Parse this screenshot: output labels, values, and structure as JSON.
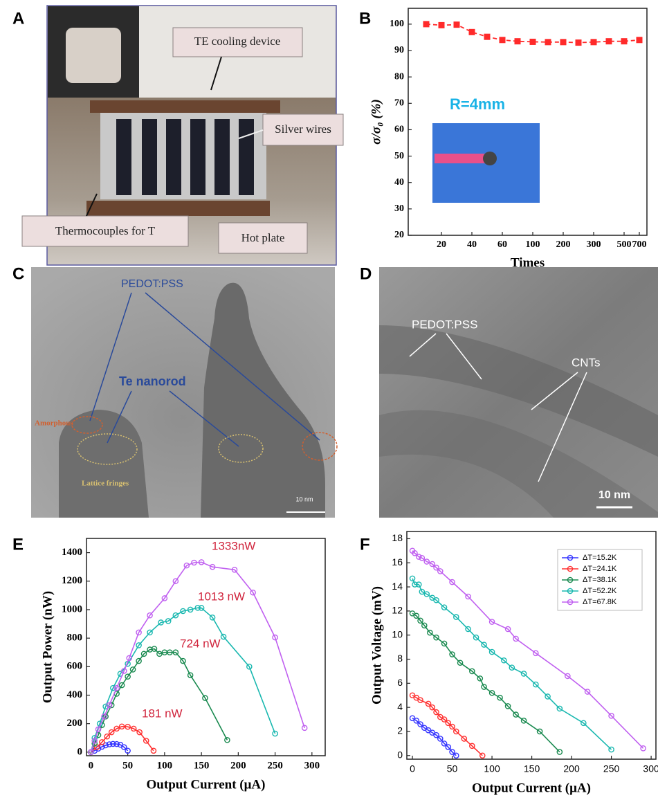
{
  "photo_panels": [
    {
      "label": "A",
      "annotations": [
        "TE cooling device",
        "Silver wires",
        "Thermocouples for T",
        "Hot plate"
      ]
    },
    {
      "label": "C",
      "annotations": [
        "PEDOT:PSS",
        "Te nanorod",
        "Amorphous",
        "Lattice fringes",
        "10 nm"
      ]
    },
    {
      "label": "D",
      "annotations": [
        "PEDOT:PSS",
        "CNTs",
        "10 nm"
      ]
    }
  ],
  "chart_data": [
    {
      "type": "line",
      "panel_label": "B",
      "y_label": "σ/σ₀ (%)",
      "x_label": "Times",
      "annotations": [
        "R=4mm"
      ],
      "categories": [
        null,
        "20",
        null,
        "40",
        null,
        "60",
        null,
        "100",
        null,
        "200",
        null,
        "300",
        null,
        "500",
        "700"
      ],
      "values": [
        100,
        99.6,
        99.8,
        97,
        95.2,
        94,
        93.5,
        93.3,
        93.2,
        93.2,
        93,
        93.2,
        93.5,
        93.5,
        94
      ],
      "color": "#ff2a2a",
      "marker": "square",
      "dashed": true,
      "ylim": [
        20,
        106
      ],
      "yticks": [
        20,
        30,
        40,
        50,
        60,
        70,
        80,
        90,
        100
      ]
    },
    {
      "type": "line",
      "panel_label": "E",
      "y_label": "Output Power (nW)",
      "x_label": "Output Current (μA)",
      "annotations": [
        "1333nW",
        "1013 nW",
        "724 nW",
        "181 nW"
      ],
      "marker": "circle",
      "series": [
        {
          "color": "#3535ff",
          "x": [
            0,
            5,
            10,
            15,
            20,
            25,
            30,
            35,
            40,
            45,
            50
          ],
          "values": [
            0,
            10,
            25,
            38,
            48,
            55,
            58,
            57,
            52,
            35,
            10
          ]
        },
        {
          "color": "#ff3030",
          "x": [
            0,
            8,
            15,
            22,
            28,
            35,
            42,
            50,
            58,
            66,
            75,
            85
          ],
          "values": [
            0,
            35,
            70,
            110,
            140,
            165,
            180,
            178,
            165,
            140,
            80,
            10
          ]
        },
        {
          "color": "#1a8a50",
          "x": [
            0,
            5,
            10,
            15,
            20,
            28,
            35,
            42,
            50,
            57,
            65,
            72,
            80,
            86,
            93,
            100,
            107,
            115,
            125,
            135,
            155,
            185
          ],
          "values": [
            0,
            60,
            120,
            190,
            250,
            330,
            410,
            470,
            530,
            580,
            640,
            690,
            720,
            725,
            690,
            700,
            700,
            700,
            640,
            540,
            380,
            85
          ]
        },
        {
          "color": "#1ab8b0",
          "x": [
            0,
            5,
            12,
            20,
            30,
            40,
            50,
            65,
            80,
            95,
            105,
            115,
            125,
            135,
            145,
            150,
            165,
            180,
            215,
            250
          ],
          "values": [
            0,
            100,
            200,
            320,
            450,
            550,
            620,
            750,
            840,
            910,
            920,
            960,
            990,
            1000,
            1013,
            1012,
            945,
            810,
            600,
            130
          ]
        },
        {
          "color": "#c060f0",
          "x": [
            0,
            5,
            10,
            18,
            25,
            35,
            45,
            52,
            65,
            80,
            100,
            115,
            130,
            140,
            150,
            165,
            195,
            220,
            250,
            290
          ],
          "values": [
            0,
            80,
            160,
            250,
            330,
            450,
            570,
            660,
            840,
            960,
            1080,
            1200,
            1310,
            1330,
            1333,
            1300,
            1280,
            1120,
            805,
            170
          ]
        }
      ],
      "xlim": [
        -6,
        318
      ],
      "xticks": [
        0,
        50,
        100,
        150,
        200,
        250,
        300
      ],
      "ylim": [
        -25,
        1500
      ],
      "yticks": [
        0,
        200,
        400,
        600,
        800,
        1000,
        1200,
        1400
      ]
    },
    {
      "type": "line",
      "panel_label": "F",
      "y_label": "Output Voltage (mV)",
      "x_label": "Output Current (μA)",
      "marker": "circle",
      "legend": "upper right",
      "series": [
        {
          "name": "ΔT=15.2K",
          "color": "#3535ff",
          "x": [
            0,
            5,
            10,
            15,
            20,
            25,
            30,
            35,
            40,
            45,
            50,
            55
          ],
          "values": [
            3.1,
            2.9,
            2.6,
            2.3,
            2.1,
            1.9,
            1.7,
            1.4,
            1.0,
            0.7,
            0.3,
            0
          ]
        },
        {
          "name": "ΔT=24.1K",
          "color": "#ff3030",
          "x": [
            0,
            5,
            10,
            20,
            25,
            30,
            35,
            40,
            45,
            50,
            55,
            65,
            75,
            88
          ],
          "values": [
            5,
            4.8,
            4.6,
            4.3,
            4.0,
            3.6,
            3.2,
            3.0,
            2.7,
            2.4,
            2.0,
            1.4,
            0.8,
            0
          ]
        },
        {
          "name": "ΔT=38.1K",
          "color": "#1a8a50",
          "x": [
            0,
            5,
            10,
            15,
            22,
            30,
            40,
            50,
            60,
            75,
            85,
            90,
            100,
            110,
            120,
            130,
            140,
            160,
            185
          ],
          "values": [
            11.8,
            11.6,
            11.2,
            10.8,
            10.2,
            9.8,
            9.3,
            8.4,
            7.7,
            7.0,
            6.4,
            5.7,
            5.2,
            4.8,
            4.1,
            3.4,
            2.9,
            2.0,
            0.3
          ]
        },
        {
          "name": "ΔT=52.2K",
          "color": "#1ab8b0",
          "x": [
            0,
            3,
            8,
            12,
            18,
            25,
            30,
            40,
            55,
            70,
            80,
            90,
            100,
            115,
            125,
            140,
            155,
            170,
            185,
            215,
            250
          ],
          "values": [
            14.7,
            14.2,
            14.2,
            13.6,
            13.4,
            13.1,
            12.9,
            12.3,
            11.5,
            10.5,
            9.8,
            9.2,
            8.6,
            7.9,
            7.3,
            6.8,
            5.9,
            4.9,
            3.9,
            2.7,
            0.5
          ]
        },
        {
          "name": "ΔT=67.8K",
          "color": "#c060f0",
          "x": [
            0,
            3,
            8,
            12,
            18,
            25,
            30,
            35,
            50,
            70,
            100,
            120,
            130,
            155,
            195,
            220,
            250,
            290
          ],
          "values": [
            17,
            16.8,
            16.5,
            16.4,
            16.1,
            15.9,
            15.6,
            15.3,
            14.4,
            13.2,
            11.1,
            10.5,
            9.7,
            8.5,
            6.6,
            5.3,
            3.3,
            0.6
          ]
        }
      ],
      "xlim": [
        -7,
        306
      ],
      "xticks": [
        0,
        50,
        100,
        150,
        200,
        250,
        300
      ],
      "ylim": [
        -0.3,
        18.6
      ],
      "yticks": [
        0,
        2,
        4,
        6,
        8,
        10,
        12,
        14,
        16,
        18
      ]
    }
  ]
}
